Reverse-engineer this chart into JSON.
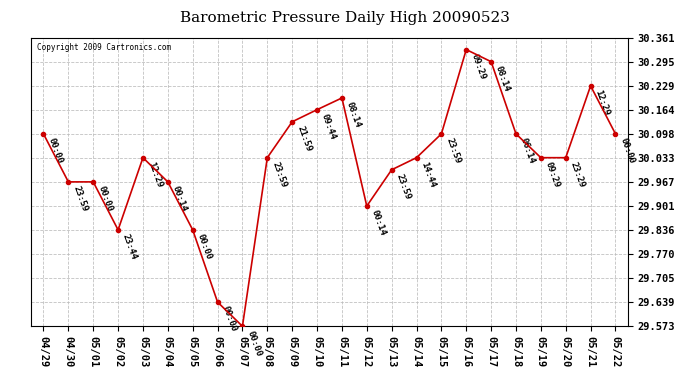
{
  "title": "Barometric Pressure Daily High 20090523",
  "copyright": "Copyright 2009 Cartronics.com",
  "dates": [
    "04/29",
    "04/30",
    "05/01",
    "05/02",
    "05/03",
    "05/04",
    "05/05",
    "05/06",
    "05/07",
    "05/08",
    "05/09",
    "05/10",
    "05/11",
    "05/12",
    "05/13",
    "05/14",
    "05/15",
    "05/16",
    "05/17",
    "05/18",
    "05/19",
    "05/20",
    "05/21",
    "05/22"
  ],
  "values": [
    30.098,
    29.967,
    29.967,
    29.836,
    30.033,
    29.967,
    29.836,
    29.639,
    29.573,
    30.033,
    30.131,
    30.164,
    30.196,
    29.901,
    30.0,
    30.033,
    30.098,
    30.328,
    30.295,
    30.098,
    30.033,
    30.033,
    30.229,
    30.098
  ],
  "annotations": [
    "00:00",
    "23:59",
    "00:00",
    "23:44",
    "12:29",
    "00:14",
    "00:00",
    "00:00",
    "00:00",
    "23:59",
    "21:59",
    "09:44",
    "08:14",
    "00:14",
    "23:59",
    "14:44",
    "23:59",
    "09:29",
    "08:14",
    "06:14",
    "09:29",
    "23:29",
    "12:29",
    "00:00"
  ],
  "ylim": [
    29.573,
    30.361
  ],
  "yticks": [
    29.573,
    29.639,
    29.705,
    29.77,
    29.836,
    29.901,
    29.967,
    30.033,
    30.098,
    30.164,
    30.229,
    30.295,
    30.361
  ],
  "line_color": "#cc0000",
  "marker_color": "#cc0000",
  "bg_color": "#ffffff",
  "grid_color": "#bbbbbb",
  "title_fontsize": 11,
  "annotation_fontsize": 6.5,
  "tick_fontsize": 7.5
}
